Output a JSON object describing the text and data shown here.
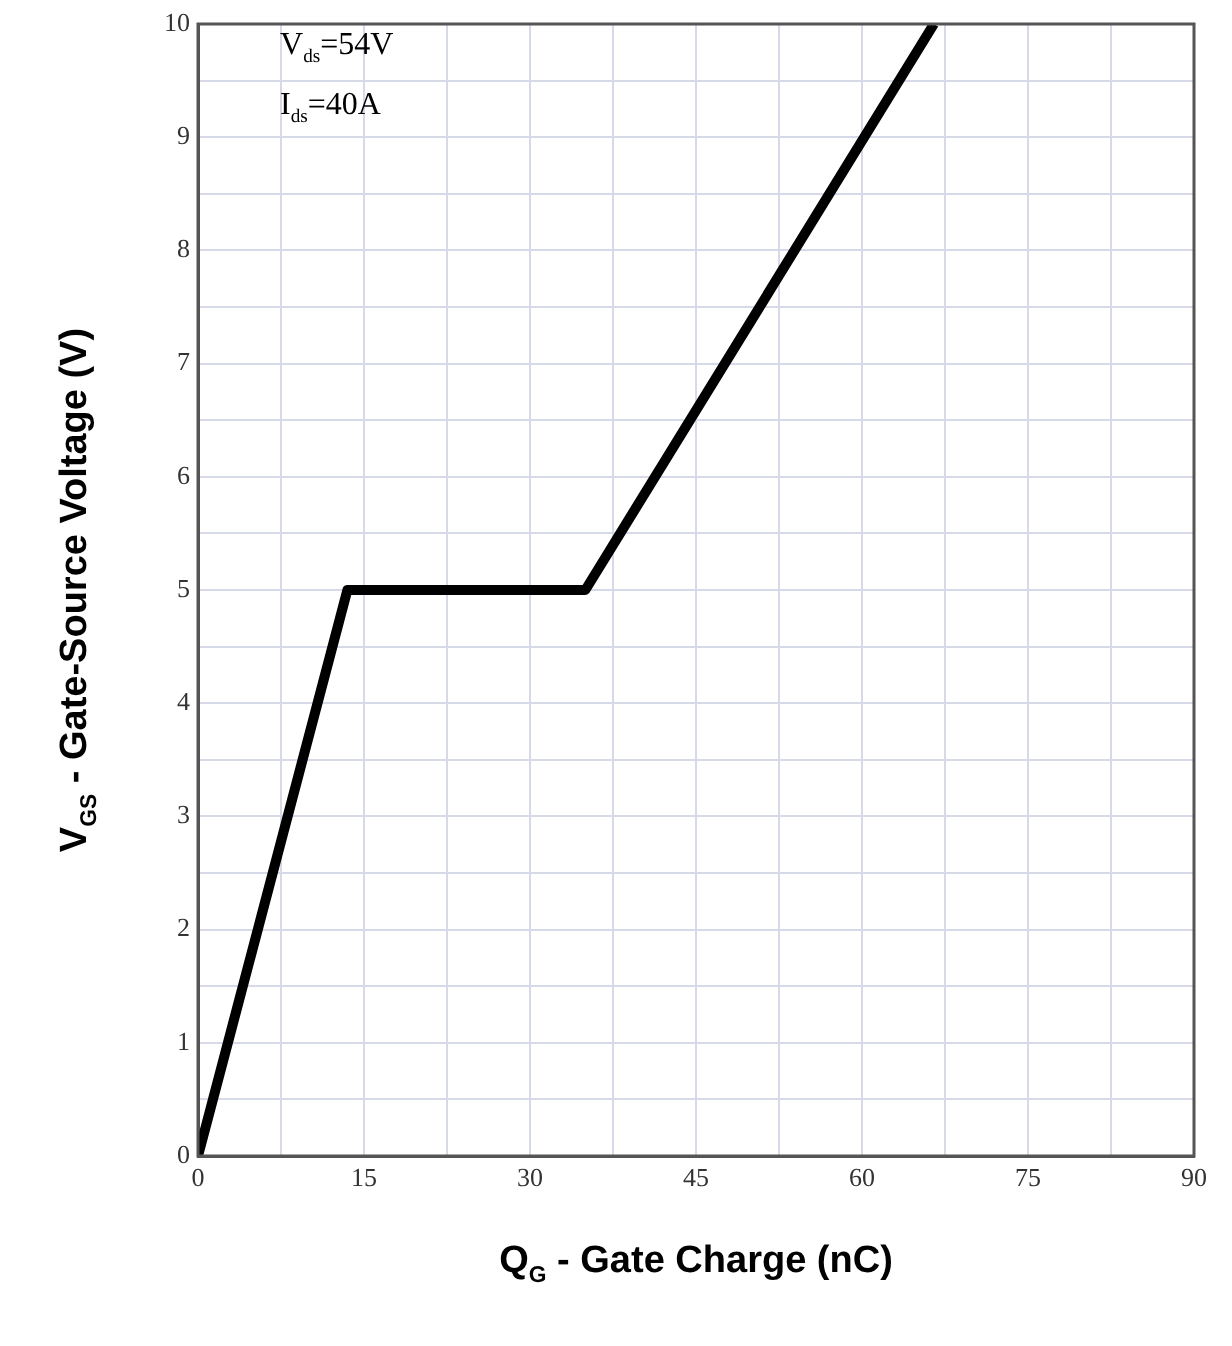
{
  "chart_data": {
    "type": "line",
    "xlabel": "Q$_{G}$ - Gate Charge (nC)",
    "ylabel": "V$_{GS}$ - Gate-Source Voltage (V)",
    "annotations": [
      "V$_{ds}$=54V",
      "I$_{ds}$=40A"
    ],
    "x": [
      0,
      13.5,
      35,
      66.5
    ],
    "series": [
      {
        "color": "#000000",
        "values": [
          0,
          5,
          5,
          10
        ]
      }
    ],
    "xlim": [
      0,
      90
    ],
    "xticks": [
      0,
      {
        "value": 7.5,
        "label": null
      },
      15,
      {
        "value": 22.5,
        "label": null
      },
      30,
      {
        "value": 37.5,
        "label": null
      },
      45,
      {
        "value": 52.5,
        "label": null
      },
      60,
      {
        "value": 67.5,
        "label": null
      },
      75,
      {
        "value": 82.5,
        "label": null
      },
      90
    ],
    "ylim": [
      0,
      10
    ],
    "yticks": [
      0,
      {
        "value": 0.5,
        "label": null
      },
      1,
      {
        "value": 1.5,
        "label": null
      },
      2,
      {
        "value": 2.5,
        "label": null
      },
      3,
      {
        "value": 3.5,
        "label": null
      },
      4,
      {
        "value": 4.5,
        "label": null
      },
      5,
      {
        "value": 5.5,
        "label": null
      },
      6,
      {
        "value": 6.5,
        "label": null
      },
      7,
      {
        "value": 7.5,
        "label": null
      },
      8,
      {
        "value": 8.5,
        "label": null
      },
      9,
      {
        "value": 9.5,
        "label": null
      },
      10
    ],
    "grid": true,
    "legend": false,
    "marker": "none",
    "line_style": "solid"
  }
}
